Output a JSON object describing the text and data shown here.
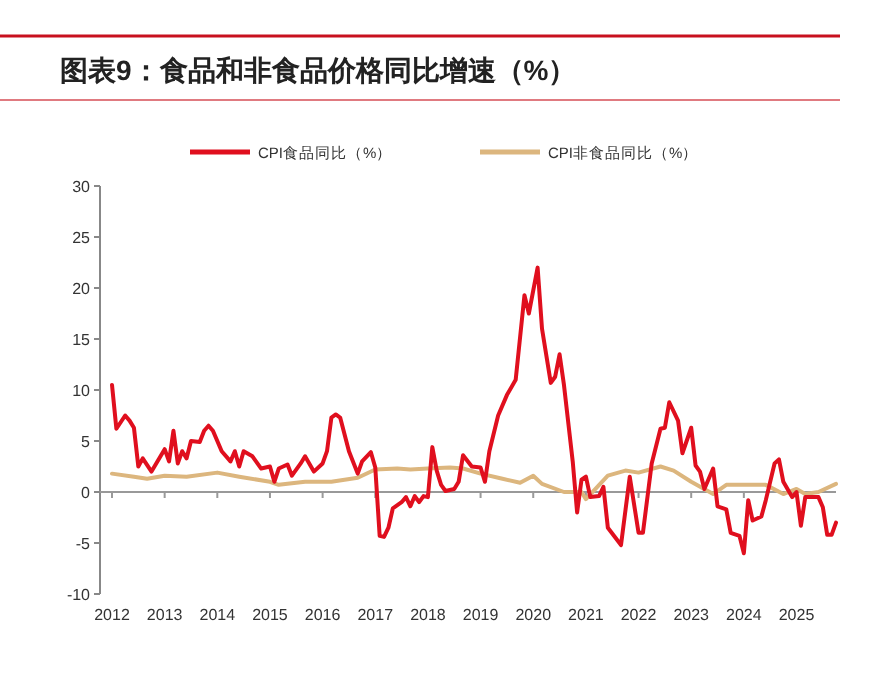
{
  "chart_data": {
    "type": "line",
    "title": "图表9：食品和非食品价格同比增速（%）",
    "series": [
      {
        "name": "CPI食品同比（%）",
        "color": "#e00f1e",
        "x": [
          "2012-01",
          "2012-02",
          "2012-04",
          "2012-05",
          "2012-06",
          "2012-07",
          "2012-08",
          "2012-10",
          "2013-01",
          "2013-02",
          "2013-03",
          "2013-04",
          "2013-05",
          "2013-06",
          "2013-07",
          "2013-09",
          "2013-10",
          "2013-11",
          "2013-12",
          "2014-02",
          "2014-04",
          "2014-05",
          "2014-06",
          "2014-07",
          "2014-09",
          "2014-11",
          "2015-01",
          "2015-02",
          "2015-03",
          "2015-05",
          "2015-06",
          "2015-08",
          "2015-09",
          "2015-11",
          "2016-01",
          "2016-02",
          "2016-03",
          "2016-04",
          "2016-05",
          "2016-07",
          "2016-09",
          "2016-10",
          "2016-12",
          "2017-01",
          "2017-02",
          "2017-03",
          "2017-04",
          "2017-05",
          "2017-07",
          "2017-08",
          "2017-09",
          "2017-10",
          "2017-11",
          "2017-12",
          "2018-01",
          "2018-02",
          "2018-03",
          "2018-04",
          "2018-05",
          "2018-07",
          "2018-08",
          "2018-09",
          "2018-11",
          "2019-01",
          "2019-02",
          "2019-03",
          "2019-05",
          "2019-07",
          "2019-09",
          "2019-11",
          "2019-12",
          "2020-02",
          "2020-03",
          "2020-05",
          "2020-06",
          "2020-07",
          "2020-08",
          "2020-10",
          "2020-11",
          "2020-12",
          "2021-01",
          "2021-02",
          "2021-04",
          "2021-05",
          "2021-06",
          "2021-09",
          "2021-11",
          "2022-01",
          "2022-02",
          "2022-04",
          "2022-06",
          "2022-07",
          "2022-08",
          "2022-10",
          "2022-11",
          "2023-01",
          "2023-02",
          "2023-03",
          "2023-04",
          "2023-06",
          "2023-07",
          "2023-09",
          "2023-10",
          "2023-12",
          "2024-01",
          "2024-02",
          "2024-03",
          "2024-05",
          "2024-06",
          "2024-08",
          "2024-09",
          "2024-10",
          "2024-12",
          "2025-01",
          "2025-02",
          "2025-03",
          "2025-06",
          "2025-07",
          "2025-08",
          "2025-09",
          "2025-10"
        ],
        "values": [
          10.5,
          6.2,
          7.5,
          7.0,
          6.3,
          2.5,
          3.3,
          2.0,
          4.2,
          3.0,
          6.0,
          2.8,
          4.0,
          3.3,
          5.0,
          4.9,
          6.0,
          6.5,
          6.0,
          4.0,
          3.0,
          4.0,
          2.5,
          4.0,
          3.5,
          2.3,
          2.5,
          1.0,
          2.3,
          2.7,
          1.6,
          2.8,
          3.5,
          2.0,
          2.8,
          4.0,
          7.3,
          7.6,
          7.3,
          4.0,
          1.8,
          3.0,
          3.9,
          2.4,
          -4.3,
          -4.4,
          -3.5,
          -1.6,
          -1.0,
          -0.5,
          -1.4,
          -0.4,
          -1.0,
          -0.4,
          -0.5,
          4.4,
          2.1,
          0.7,
          0.1,
          0.3,
          1.0,
          3.6,
          2.5,
          2.4,
          1.0,
          4.0,
          7.5,
          9.5,
          11.0,
          19.3,
          17.5,
          22.0,
          16.0,
          10.7,
          11.3,
          13.5,
          10.5,
          3.0,
          -2.0,
          1.2,
          1.5,
          -0.5,
          -0.4,
          0.5,
          -3.5,
          -5.2,
          1.5,
          -4.0,
          -4.0,
          2.8,
          6.2,
          6.3,
          8.8,
          7.0,
          3.8,
          6.3,
          2.6,
          2.0,
          0.3,
          2.3,
          -1.4,
          -1.7,
          -4.0,
          -4.3,
          -6.0,
          -0.8,
          -2.8,
          -2.4,
          -0.8,
          2.8,
          3.2,
          1.0,
          -0.5,
          0.0,
          -3.3,
          -0.5,
          -0.5,
          -1.5,
          -4.2,
          -4.2,
          -3.0
        ]
      },
      {
        "name": "CPI非食品同比（%）",
        "color": "#dcb67e",
        "x": [
          "2012-01",
          "2012-06",
          "2012-09",
          "2013-01",
          "2013-06",
          "2014-01",
          "2014-06",
          "2015-01",
          "2015-03",
          "2015-09",
          "2016-03",
          "2016-09",
          "2017-01",
          "2017-06",
          "2017-09",
          "2018-01",
          "2018-06",
          "2018-09",
          "2019-01",
          "2019-06",
          "2019-10",
          "2020-01",
          "2020-03",
          "2020-08",
          "2020-12",
          "2021-01",
          "2021-06",
          "2021-10",
          "2022-01",
          "2022-06",
          "2022-09",
          "2023-01",
          "2023-06",
          "2023-09",
          "2024-01",
          "2024-06",
          "2024-10",
          "2025-01",
          "2025-03",
          "2025-06",
          "2025-10"
        ],
        "values": [
          1.8,
          1.5,
          1.3,
          1.6,
          1.5,
          1.9,
          1.5,
          1.0,
          0.7,
          1.0,
          1.0,
          1.4,
          2.2,
          2.3,
          2.2,
          2.3,
          2.4,
          2.3,
          1.8,
          1.3,
          0.9,
          1.6,
          0.8,
          0.0,
          0.0,
          -0.7,
          1.6,
          2.1,
          1.9,
          2.5,
          2.1,
          1.0,
          -0.2,
          0.7,
          0.7,
          0.7,
          -0.2,
          0.3,
          -0.2,
          0.0,
          0.8
        ]
      }
    ],
    "xlim": [
      "2012-01",
      "2025-10"
    ],
    "xticks": [
      "2012",
      "2013",
      "2014",
      "2015",
      "2016",
      "2017",
      "2018",
      "2019",
      "2020",
      "2021",
      "2022",
      "2023",
      "2024",
      "2025"
    ],
    "ylim": [
      -10,
      30
    ],
    "yticks": [
      -10,
      -5,
      0,
      5,
      10,
      15,
      20,
      25,
      30
    ],
    "legend": "top",
    "marker": "none",
    "line_style": "solid"
  }
}
